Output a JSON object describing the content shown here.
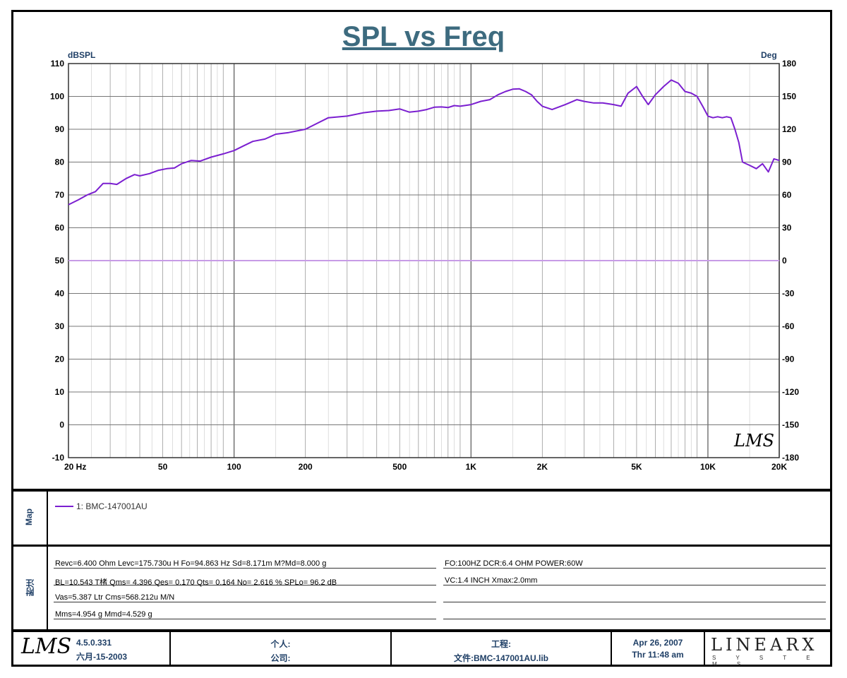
{
  "header": {
    "title": "SPL vs Freq"
  },
  "chart_data": {
    "type": "line",
    "title": "SPL vs Freq",
    "ylabel": "dBSPL",
    "y2label": "Deg",
    "xscale": "log",
    "xlim": [
      20,
      20000
    ],
    "ylim": [
      -10,
      110
    ],
    "y2lim": [
      -180,
      180
    ],
    "grid": true,
    "x_tick_labels": [
      {
        "v": 20,
        "t": "20  Hz"
      },
      {
        "v": 50,
        "t": "50"
      },
      {
        "v": 100,
        "t": "100"
      },
      {
        "v": 200,
        "t": "200"
      },
      {
        "v": 500,
        "t": "500"
      },
      {
        "v": 1000,
        "t": "1K"
      },
      {
        "v": 2000,
        "t": "2K"
      },
      {
        "v": 5000,
        "t": "5K"
      },
      {
        "v": 10000,
        "t": "10K"
      },
      {
        "v": 20000,
        "t": "20K"
      }
    ],
    "y_ticks": [
      110,
      100,
      90,
      80,
      70,
      60,
      50,
      40,
      30,
      20,
      10,
      0,
      -10
    ],
    "y2_ticks": [
      180,
      150,
      120,
      90,
      60,
      30,
      0,
      -30,
      -60,
      -90,
      -120,
      -150,
      -180
    ],
    "series": [
      {
        "name": "1: BMC-147001AU",
        "color": "#7b1fd0",
        "x": [
          20,
          22,
          24,
          26,
          28,
          30,
          32,
          35,
          38,
          40,
          44,
          48,
          52,
          56,
          60,
          66,
          72,
          80,
          90,
          100,
          110,
          120,
          135,
          150,
          170,
          200,
          220,
          250,
          300,
          350,
          400,
          450,
          500,
          550,
          600,
          650,
          700,
          750,
          800,
          850,
          900,
          1000,
          1100,
          1200,
          1300,
          1400,
          1500,
          1600,
          1700,
          1800,
          1900,
          2000,
          2200,
          2500,
          2800,
          3000,
          3300,
          3600,
          4000,
          4300,
          4600,
          5000,
          5300,
          5600,
          6000,
          6500,
          7000,
          7500,
          8000,
          8500,
          9000,
          9500,
          10000,
          10500,
          11000,
          11500,
          12000,
          12500,
          13000,
          13500,
          14000,
          15000,
          16000,
          17000,
          18000,
          19000,
          20000
        ],
        "y": [
          67,
          68.5,
          70,
          71,
          73.5,
          73.5,
          73.2,
          75,
          76.2,
          75.8,
          76.5,
          77.5,
          78,
          78.2,
          79.5,
          80.5,
          80.3,
          81.5,
          82.5,
          83.5,
          85,
          86.3,
          87,
          88.5,
          89,
          90,
          91.5,
          93.5,
          94,
          95,
          95.5,
          95.7,
          96.2,
          95.2,
          95.5,
          96,
          96.7,
          96.8,
          96.6,
          97.2,
          97,
          97.5,
          98.5,
          99,
          100.5,
          101.5,
          102.2,
          102.3,
          101.5,
          100.5,
          98.5,
          97,
          96,
          97.5,
          99,
          98.5,
          98,
          98,
          97.5,
          97,
          101,
          103,
          100,
          97.5,
          100.5,
          103,
          105,
          104,
          101.5,
          101,
          100,
          97,
          94,
          93.5,
          93.8,
          93.5,
          93.8,
          93.5,
          90,
          86,
          80,
          79,
          78,
          79.5,
          77,
          81,
          80.5
        ]
      }
    ],
    "phase_series": {
      "color": "#c79be6",
      "deg": 0
    }
  },
  "watermark_text": "LMS",
  "legend": {
    "panel_label": "Map",
    "entries": [
      {
        "label": "1: BMC-147001AU",
        "color": "#7b1fd0"
      }
    ]
  },
  "notes": {
    "panel_label": "附注",
    "left": [
      "Revc=6.400 Ohm  Levc=175.730u H  Fo=94.863 Hz  Sd=8.171m M?Md=8.000 g",
      "BL=10.543 T楮  Qms= 4.396  Qes= 0.170  Qts= 0.164  No= 2.616 %  SPLo= 96.2 dB",
      "Vas=5.387 Ltr  Cms=568.212u M/N",
      "Mms=4.954 g  Mmd=4.529 g"
    ],
    "right": [
      "FO:100HZ  DCR:6.4 OHM  POWER:60W",
      "VC:1.4 INCH   Xmax:2.0mm",
      "",
      ""
    ]
  },
  "footer": {
    "logo": "LMS",
    "version": "4.5.0.331",
    "version_date": "六月-15-2003",
    "person_label": "个人:",
    "company_label": "公司:",
    "project_label": "工程:",
    "file_label": "文件:BMC-147001AU.lib",
    "date": "Apr 26, 2007",
    "time": "Thr 11:48 am",
    "brand": "LINEARX",
    "brand_sub": "S Y S T E M S"
  }
}
